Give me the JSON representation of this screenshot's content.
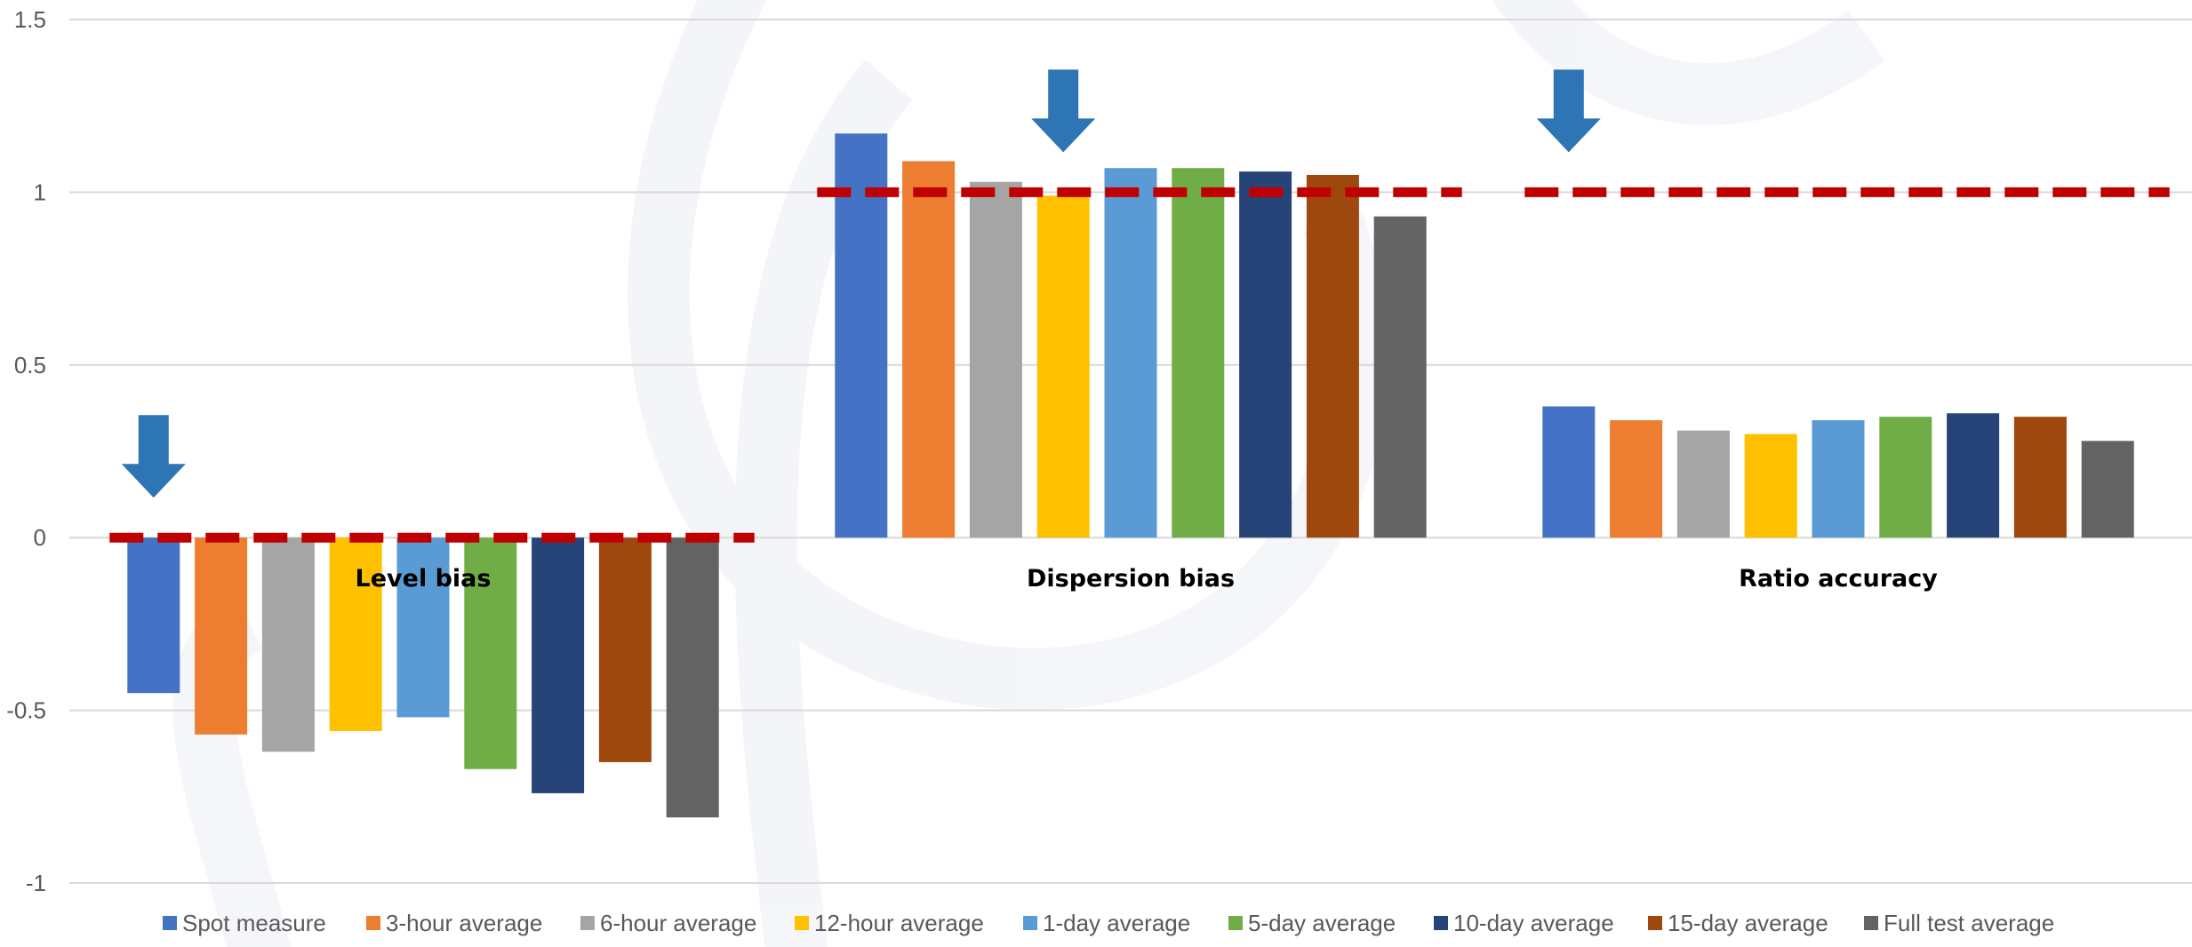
{
  "chart_data": {
    "type": "bar",
    "title": "",
    "xlabel": "",
    "ylabel": "",
    "ylim": [
      -1,
      1.5
    ],
    "yticks": [
      -1,
      -0.5,
      0,
      0.5,
      1,
      1.5
    ],
    "ytick_labels": [
      "-1",
      "-0.5",
      "0",
      "0.5",
      "1",
      "1.5"
    ],
    "grid": true,
    "legend_position": "bottom",
    "categories": [
      "Level bias",
      "Dispersion bias",
      "Ratio accuracy"
    ],
    "series": [
      {
        "name": "Spot measure",
        "color": "#4472C4",
        "values": [
          -0.45,
          1.17,
          0.38
        ]
      },
      {
        "name": "3-hour average",
        "color": "#ED7D31",
        "values": [
          -0.57,
          1.09,
          0.34
        ]
      },
      {
        "name": "6-hour average",
        "color": "#A5A5A5",
        "values": [
          -0.62,
          1.03,
          0.31
        ]
      },
      {
        "name": "12-hour average",
        "color": "#FFC000",
        "values": [
          -0.56,
          0.99,
          0.3
        ]
      },
      {
        "name": "1-day average",
        "color": "#5B9BD5",
        "values": [
          -0.52,
          1.07,
          0.34
        ]
      },
      {
        "name": "5-day average",
        "color": "#70AD47",
        "values": [
          -0.67,
          1.07,
          0.35
        ]
      },
      {
        "name": "10-day average",
        "color": "#264478",
        "values": [
          -0.74,
          1.06,
          0.36
        ]
      },
      {
        "name": "15-day average",
        "color": "#9E480E",
        "values": [
          -0.65,
          1.05,
          0.35
        ]
      },
      {
        "name": "Full test average",
        "color": "#636363",
        "values": [
          -0.81,
          0.93,
          0.28
        ]
      }
    ],
    "reference_lines": [
      {
        "category": "Level bias",
        "value": 0,
        "color": "#C00000",
        "style": "dashed"
      },
      {
        "category": "Dispersion bias",
        "value": 1,
        "color": "#C00000",
        "style": "dashed"
      },
      {
        "category": "Ratio accuracy",
        "value": 1,
        "color": "#C00000",
        "style": "dashed"
      }
    ],
    "annotations": [
      {
        "type": "down-arrow",
        "color": "#2E75B6",
        "category": "Level bias",
        "series": "Spot measure"
      },
      {
        "type": "down-arrow",
        "color": "#2E75B6",
        "category": "Dispersion bias",
        "series": "12-hour average"
      },
      {
        "type": "down-arrow",
        "color": "#2E75B6",
        "category": "Ratio accuracy",
        "series": "Spot measure"
      }
    ]
  }
}
